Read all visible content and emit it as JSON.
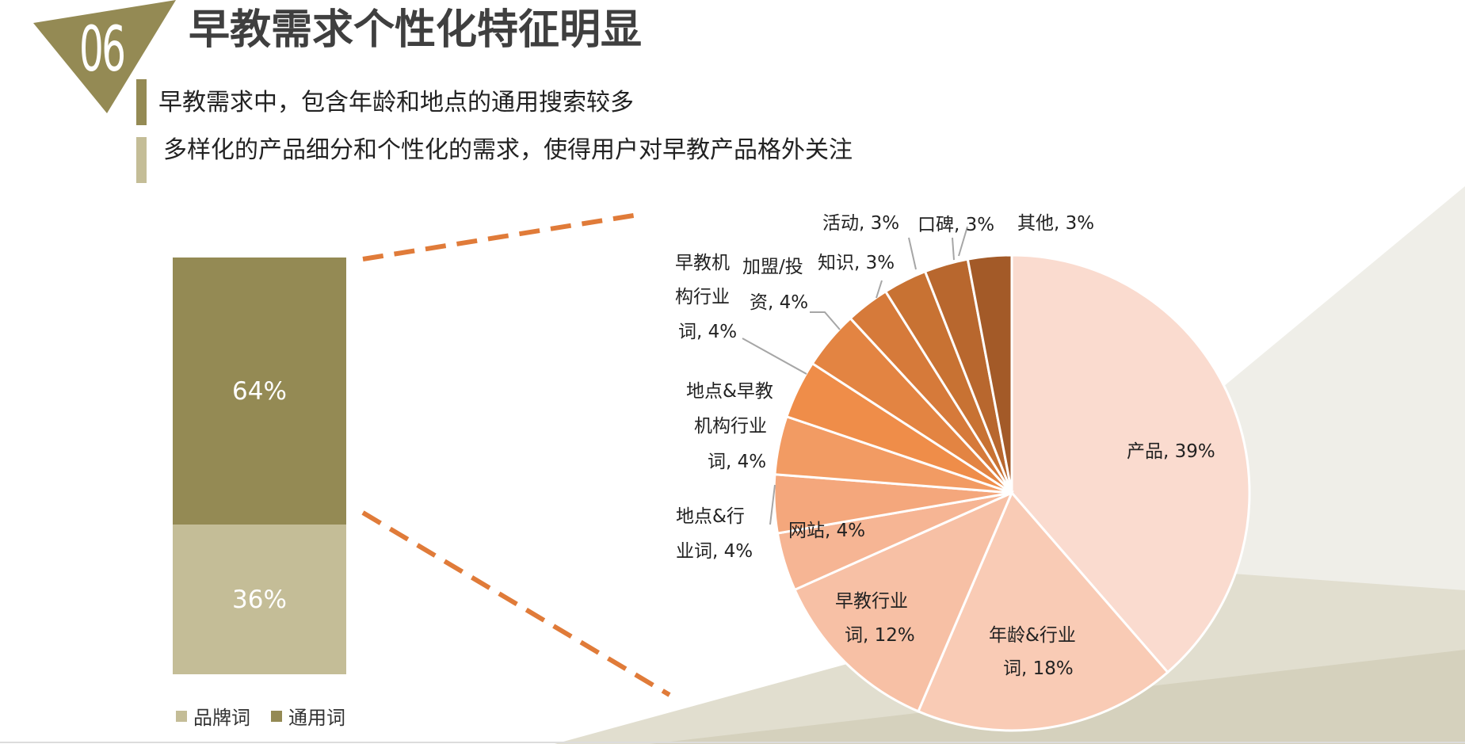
{
  "header": {
    "number": "06",
    "title": "早教需求个性化特征明显",
    "subtitles": [
      "早教需求中，包含年龄和地点的通用搜索较多",
      "多样化的产品细分和个性化的需求，使得用户对早教产品格外关注"
    ]
  },
  "colors": {
    "olive": "#948a54",
    "khaki": "#c4bd97",
    "accent": "#e07b39",
    "page_bg": "#ffffff"
  },
  "chart_data": [
    {
      "type": "bar",
      "stacked": true,
      "categories": [
        ""
      ],
      "series": [
        {
          "name": "品牌词",
          "values": [
            36
          ],
          "label": "36%",
          "color": "#c4bd97"
        },
        {
          "name": "通用词",
          "values": [
            64
          ],
          "label": "64%",
          "color": "#948a54"
        }
      ],
      "legend": [
        "品牌词",
        "通用词"
      ],
      "legend_position": "bottom",
      "ylim": [
        0,
        100
      ]
    },
    {
      "type": "pie",
      "slices": [
        {
          "name": "产品",
          "value": 39,
          "label": "产品, 39%",
          "color": "#fadbcf"
        },
        {
          "name": "年龄&行业词",
          "value": 18,
          "label": "年龄&行业词, 18%",
          "color": "#f9cbb5"
        },
        {
          "name": "早教行业词",
          "value": 12,
          "label": "早教行业词, 12%",
          "color": "#f7c0a5"
        },
        {
          "name": "网站",
          "value": 4,
          "label": "网站, 4%",
          "color": "#f6b594"
        },
        {
          "name": "地点&行业词",
          "value": 4,
          "label": "地点&行业词, 4%",
          "color": "#f4a77c"
        },
        {
          "name": "地点&早教机构行业词",
          "value": 4,
          "label": "地点&早教机构行业词, 4%",
          "color": "#f29b63"
        },
        {
          "name": "早教机构行业词",
          "value": 4,
          "label": "早教机构行业词, 4%",
          "color": "#ef8d49"
        },
        {
          "name": "加盟/投资",
          "value": 4,
          "label": "加盟/投资, 4%",
          "color": "#e38442"
        },
        {
          "name": "知识",
          "value": 3,
          "label": "知识, 3%",
          "color": "#d67a3a"
        },
        {
          "name": "活动",
          "value": 3,
          "label": "活动, 3%",
          "color": "#c87233"
        },
        {
          "name": "口碑",
          "value": 3,
          "label": "口碑, 3%",
          "color": "#b8672e"
        },
        {
          "name": "其他",
          "value": 3,
          "label": "其他, 3%",
          "color": "#a35a28"
        }
      ],
      "start_angle_deg": 0,
      "direction": "clockwise"
    }
  ],
  "pie_label_text": {
    "product": "产品, 39%",
    "age_industry_l1": "年龄&行业",
    "age_industry_l2": "词, 18%",
    "edu_industry_l1": "早教行业",
    "edu_industry_l2": "词, 12%",
    "website": "网站, 4%",
    "loc_industry_l1": "地点&行",
    "loc_industry_l2": "业词, 4%",
    "loc_edu_l1": "地点&早教",
    "loc_edu_l2": "机构行业",
    "loc_edu_l3": "词, 4%",
    "edu_org_l1": "早教机",
    "edu_org_l2": "构行业",
    "edu_org_l3": "词, 4%",
    "franchise_l1": "加盟/投",
    "franchise_l2": "资, 4%",
    "knowledge": "知识, 3%",
    "activity": "活动, 3%",
    "reputation": "口碑, 3%",
    "other": "其他, 3%"
  }
}
